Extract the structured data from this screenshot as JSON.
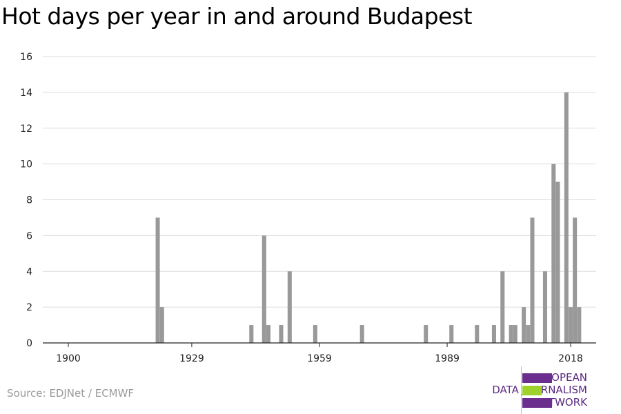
{
  "title": "Hot days per year in and around Budapest",
  "source": "Source: EDJNet / ECMWF",
  "logo": {
    "lines": [
      "EUROPEAN",
      "DATA JOURNALISM",
      "NETWORK"
    ],
    "colors": {
      "purple": "#6b2d8e",
      "green": "#9ed12b",
      "text": "#5a2a82"
    }
  },
  "chart_data": {
    "type": "bar",
    "title": "Hot days per year in and around Budapest",
    "xlabel": "",
    "ylabel": "",
    "xlim": [
      1894,
      2024
    ],
    "ylim": [
      0,
      16
    ],
    "x_ticks": [
      1900,
      1929,
      1959,
      1989,
      2018
    ],
    "y_ticks": [
      0,
      2,
      4,
      6,
      8,
      10,
      12,
      14,
      16
    ],
    "grid": true,
    "legend": "none",
    "bar_color": "#999999",
    "x": [
      1921,
      1922,
      1943,
      1946,
      1947,
      1950,
      1952,
      1958,
      1969,
      1984,
      1990,
      1996,
      2000,
      2002,
      2004,
      2005,
      2007,
      2008,
      2009,
      2012,
      2014,
      2015,
      2017,
      2018,
      2019,
      2020
    ],
    "values": [
      7,
      2,
      1,
      6,
      1,
      1,
      4,
      1,
      1,
      1,
      1,
      1,
      1,
      4,
      1,
      1,
      2,
      1,
      7,
      4,
      10,
      9,
      14,
      2,
      7,
      2
    ]
  }
}
